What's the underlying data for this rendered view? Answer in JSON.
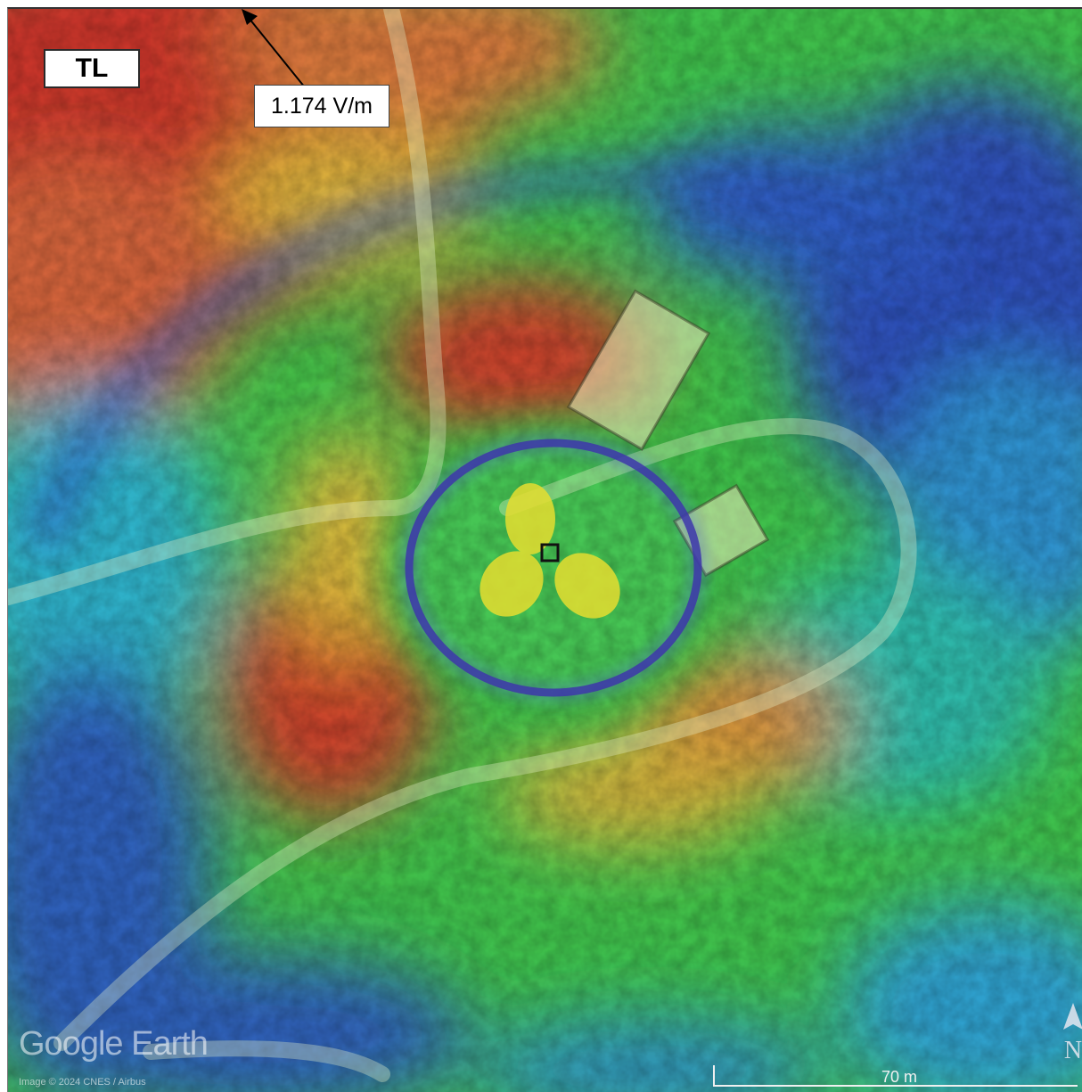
{
  "map": {
    "corner_label": "TL",
    "field_annotation": "1.174 V/m",
    "watermark": "Google Earth",
    "imagery_credit": "Image © 2024 CNES / Airbus",
    "scale_bar": {
      "distance_label": "70 m"
    },
    "compass": {
      "letter": "N"
    },
    "colors": {
      "field_high": "#c8352a",
      "field_mid": "#e8c43a",
      "field_green": "#3fbf4a",
      "field_cyan": "#2fb0c8",
      "field_low": "#2f4fb8",
      "null_ring": "#3a2a9a",
      "lobes": "#e6de30",
      "station_marker": "#111111"
    }
  }
}
